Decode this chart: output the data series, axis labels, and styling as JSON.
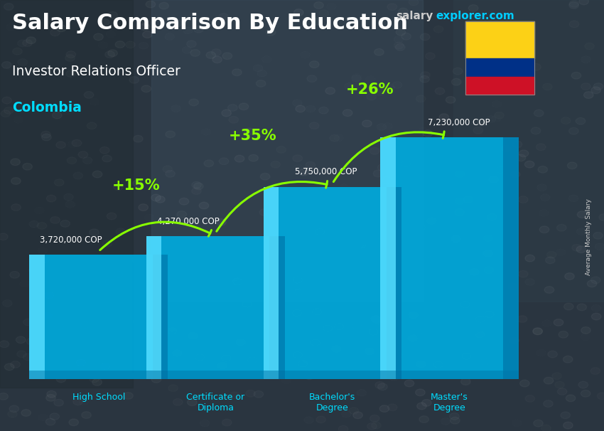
{
  "title_main": "Salary Comparison By Education",
  "subtitle": "Investor Relations Officer",
  "country": "Colombia",
  "categories": [
    "High School",
    "Certificate or\nDiploma",
    "Bachelor's\nDegree",
    "Master's\nDegree"
  ],
  "values": [
    3720000,
    4270000,
    5750000,
    7230000
  ],
  "value_labels": [
    "3,720,000 COP",
    "4,270,000 COP",
    "5,750,000 COP",
    "7,230,000 COP"
  ],
  "pct_labels": [
    "+15%",
    "+35%",
    "+26%"
  ],
  "bar_color_main": "#00aadd",
  "bar_color_light": "#55ddff",
  "bar_color_dark": "#0077aa",
  "bar_color_top": "#33ccee",
  "bg_color": "#3a4a55",
  "title_color": "#ffffff",
  "subtitle_color": "#ffffff",
  "country_color": "#00ddff",
  "pct_color": "#88ff00",
  "value_label_color": "#ffffff",
  "cat_label_color": "#00ddff",
  "ylabel_text": "Average Monthly Salary",
  "ylabel_color": "#cccccc",
  "watermark_salary_color": "#cccccc",
  "watermark_explorer_color": "#00ccff",
  "flag_yellow": "#FCD116",
  "flag_blue": "#003087",
  "flag_red": "#CE1126"
}
